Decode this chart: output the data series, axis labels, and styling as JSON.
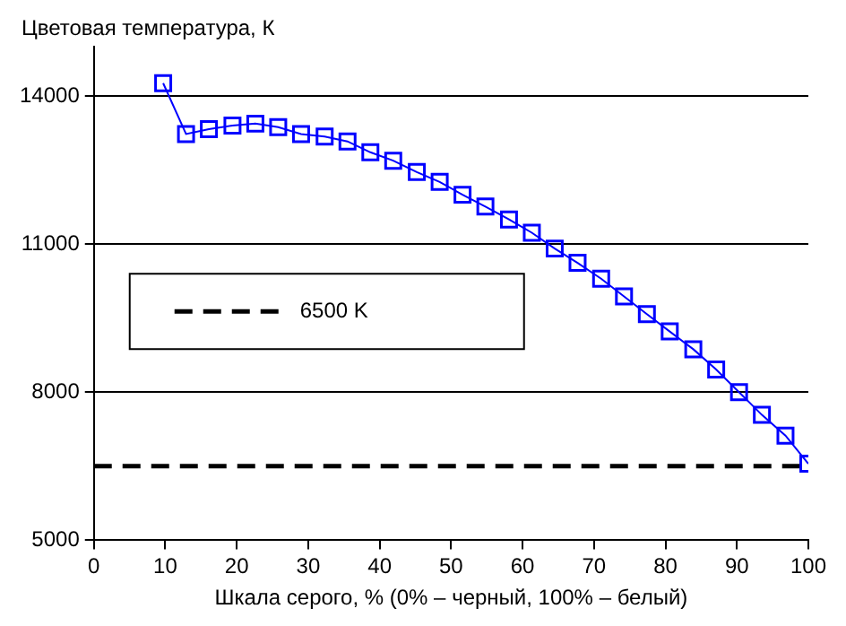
{
  "chart_data": {
    "type": "line",
    "ylabel": "Цветовая температура, К",
    "xlabel": "Шкала серого, % (0% – черный, 100% – белый)",
    "x": [
      9.7,
      12.9,
      16.1,
      19.4,
      22.6,
      25.8,
      29.0,
      32.3,
      35.5,
      38.7,
      41.9,
      45.2,
      48.4,
      51.6,
      54.8,
      58.1,
      61.3,
      64.5,
      67.7,
      71.0,
      74.2,
      77.4,
      80.6,
      83.9,
      87.1,
      90.3,
      93.5,
      96.8,
      100
    ],
    "series": [
      {
        "color": "#0000ff",
        "values": [
          14260,
          13230,
          13330,
          13400,
          13440,
          13370,
          13230,
          13180,
          13080,
          12860,
          12690,
          12460,
          12260,
          12000,
          11760,
          11500,
          11230,
          10910,
          10620,
          10300,
          9940,
          9580,
          9230,
          8870,
          8460,
          8000,
          7540,
          7120,
          6550
        ]
      }
    ],
    "xlim": [
      0,
      100
    ],
    "xticks": [
      0,
      10,
      20,
      30,
      40,
      50,
      60,
      70,
      80,
      90,
      100
    ],
    "ylim": [
      5000,
      15000
    ],
    "yticks": [
      5000,
      8000,
      11000,
      14000
    ],
    "ref_lines": [
      {
        "axis": "y",
        "value": 6500,
        "label": "6500 K",
        "color": "#000000",
        "line_style": "dashed"
      }
    ],
    "grid": "y",
    "legend": "left",
    "marker": "square",
    "line_style": "solid"
  }
}
